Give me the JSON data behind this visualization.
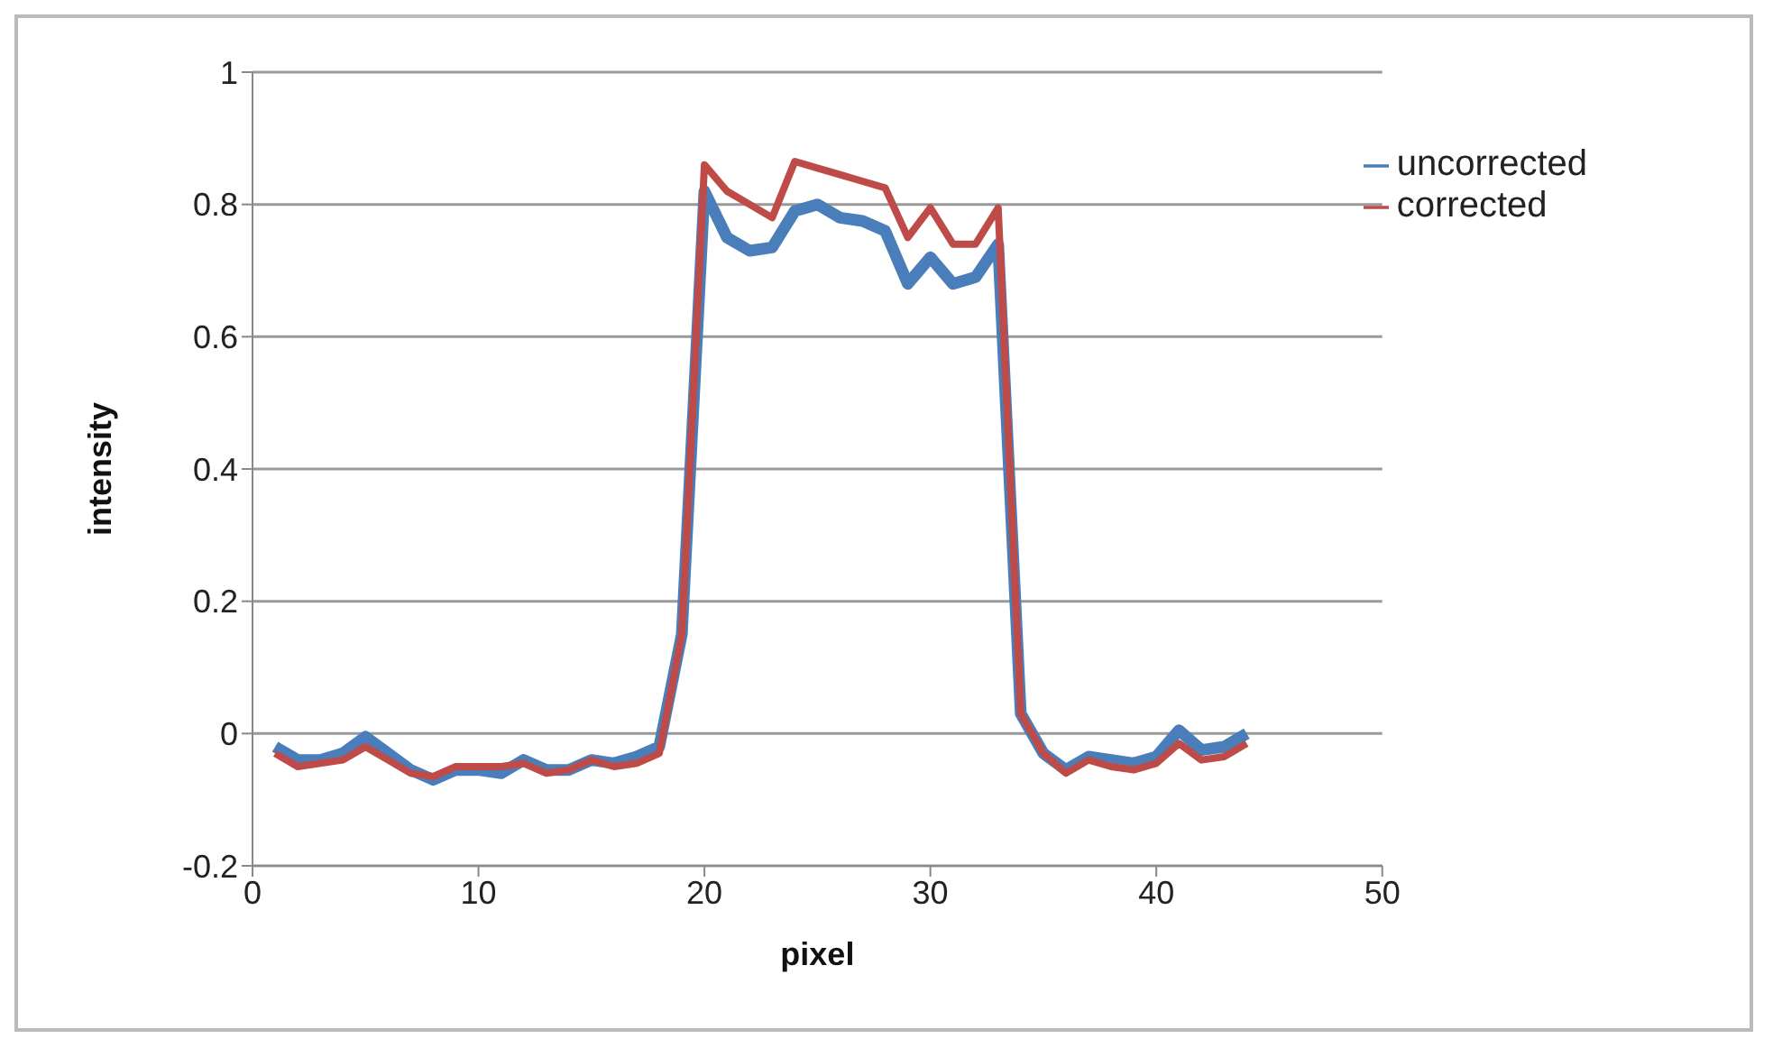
{
  "chart_data": {
    "type": "line",
    "xlabel": "pixel",
    "ylabel": "intensity",
    "x": [
      1,
      2,
      3,
      4,
      5,
      6,
      7,
      8,
      9,
      10,
      11,
      12,
      13,
      14,
      15,
      16,
      17,
      18,
      19,
      20,
      21,
      22,
      23,
      24,
      25,
      26,
      27,
      28,
      29,
      30,
      31,
      32,
      33,
      34,
      35,
      36,
      37,
      38,
      39,
      40,
      41,
      42,
      43,
      44
    ],
    "series": [
      {
        "name": "uncorrected",
        "color": "#4a7ebb",
        "values": [
          -0.02,
          -0.04,
          -0.04,
          -0.03,
          -0.005,
          -0.03,
          -0.055,
          -0.07,
          -0.055,
          -0.055,
          -0.06,
          -0.04,
          -0.055,
          -0.055,
          -0.04,
          -0.045,
          -0.035,
          -0.02,
          0.15,
          0.82,
          0.75,
          0.73,
          0.735,
          0.79,
          0.8,
          0.78,
          0.775,
          0.76,
          0.68,
          0.72,
          0.68,
          0.69,
          0.74,
          0.03,
          -0.03,
          -0.055,
          -0.035,
          -0.04,
          -0.045,
          -0.035,
          0.005,
          -0.025,
          -0.02,
          0.0
        ]
      },
      {
        "name": "corrected",
        "color": "#be4b48",
        "values": [
          -0.03,
          -0.05,
          -0.045,
          -0.04,
          -0.02,
          -0.04,
          -0.06,
          -0.065,
          -0.05,
          -0.05,
          -0.05,
          -0.045,
          -0.06,
          -0.055,
          -0.04,
          -0.05,
          -0.045,
          -0.03,
          0.15,
          0.86,
          0.82,
          0.8,
          0.78,
          0.865,
          0.855,
          0.845,
          0.835,
          0.825,
          0.75,
          0.795,
          0.74,
          0.74,
          0.795,
          0.03,
          -0.03,
          -0.06,
          -0.04,
          -0.05,
          -0.055,
          -0.045,
          -0.015,
          -0.04,
          -0.035,
          -0.015
        ]
      }
    ],
    "xlim": [
      0,
      50
    ],
    "xticks": [
      0,
      10,
      20,
      30,
      40,
      50
    ],
    "ylim": [
      -0.2,
      1
    ],
    "yticks": [
      -0.2,
      0,
      0.2,
      0.4,
      0.6,
      0.8,
      1
    ],
    "grid": "y",
    "legend": "top right",
    "marker": "none",
    "line_style": "solid"
  }
}
